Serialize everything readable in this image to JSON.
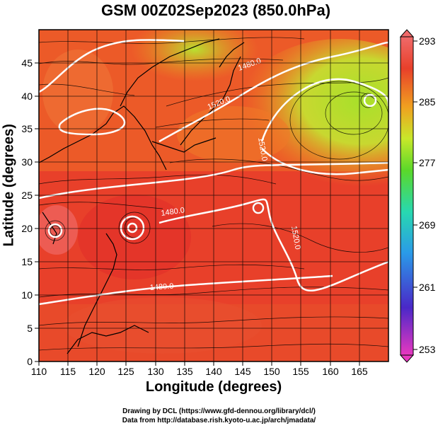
{
  "title": "GSM 00Z02Sep2023 (850.0hPa)",
  "axes": {
    "xlabel": "Longitude (degrees)",
    "ylabel": "Latitude  (degrees)",
    "x_ticks": [
      "110",
      "115",
      "120",
      "125",
      "130",
      "135",
      "140",
      "145",
      "150",
      "155",
      "160",
      "165"
    ],
    "y_ticks": [
      "0",
      "5",
      "10",
      "15",
      "20",
      "25",
      "30",
      "35",
      "40",
      "45"
    ],
    "xlim": [
      110,
      170
    ],
    "ylim": [
      0,
      50
    ]
  },
  "colorbar": {
    "ticks": [
      "293",
      "285",
      "277",
      "269",
      "261",
      "253"
    ],
    "range": [
      253,
      293
    ],
    "colors": [
      "#e83ab8",
      "#3a2ad8",
      "#2a8ae8",
      "#2ad8a8",
      "#5ad82a",
      "#c8e82a",
      "#f0a020",
      "#f05020",
      "#e8302a",
      "#f06a6a"
    ]
  },
  "contour_labels": [
    "1480.0",
    "1520.0",
    "1480.0",
    "1520.0",
    "1480.0",
    "1520.0",
    "1480.0",
    "1480.0"
  ],
  "credits": {
    "line1": "Drawing by DCL (https://www.gfd-dennou.org/library/dcl/)",
    "line2": "Data from http://database.rish.kyoto-u.ac.jp/arch/jmadata/"
  },
  "chart_data": {
    "type": "heatmap",
    "title": "GSM 00Z02Sep2023 (850.0hPa)",
    "xlabel": "Longitude (degrees)",
    "ylabel": "Latitude  (degrees)",
    "xlim": [
      110,
      170
    ],
    "ylim": [
      0,
      50
    ],
    "colorbar_range": [
      253,
      293
    ],
    "contour_labels": [
      "1480.0",
      "1520.0"
    ],
    "grid": true
  }
}
